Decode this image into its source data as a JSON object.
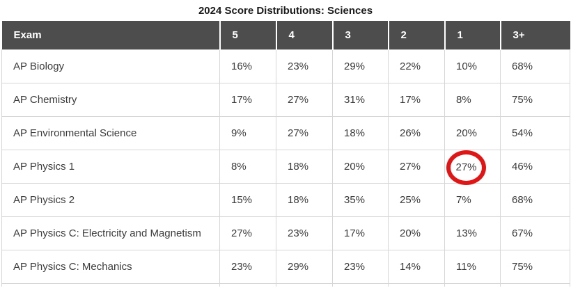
{
  "chart_data": {
    "type": "table",
    "title": "2024 Score Distributions: Sciences",
    "columns": [
      "Exam",
      "5",
      "4",
      "3",
      "2",
      "1",
      "3+"
    ],
    "rows": [
      {
        "exam": "AP Biology",
        "values": [
          "16%",
          "23%",
          "29%",
          "22%",
          "10%",
          "68%"
        ]
      },
      {
        "exam": "AP Chemistry",
        "values": [
          "17%",
          "27%",
          "31%",
          "17%",
          "8%",
          "75%"
        ]
      },
      {
        "exam": "AP Environmental Science",
        "values": [
          "9%",
          "27%",
          "18%",
          "26%",
          "20%",
          "54%"
        ]
      },
      {
        "exam": "AP Physics 1",
        "values": [
          "8%",
          "18%",
          "20%",
          "27%",
          "27%",
          "46%"
        ]
      },
      {
        "exam": "AP Physics 2",
        "values": [
          "15%",
          "18%",
          "35%",
          "25%",
          "7%",
          "68%"
        ]
      },
      {
        "exam": "AP Physics C: Electricity and Magnetism",
        "values": [
          "27%",
          "23%",
          "17%",
          "20%",
          "13%",
          "67%"
        ]
      },
      {
        "exam": "AP Physics C: Mechanics",
        "values": [
          "23%",
          "29%",
          "23%",
          "14%",
          "11%",
          "75%"
        ]
      }
    ],
    "annotation": {
      "shape": "red-circle",
      "row_exam": "AP Physics 1",
      "column": "1",
      "value": "27%"
    }
  },
  "colors": {
    "header_bg": "#4d4d4d",
    "header_text": "#ffffff",
    "body_text": "#3b3b3b",
    "title_text": "#1b1b1b",
    "border": "#d6d6d6",
    "circle": "#e01616"
  }
}
